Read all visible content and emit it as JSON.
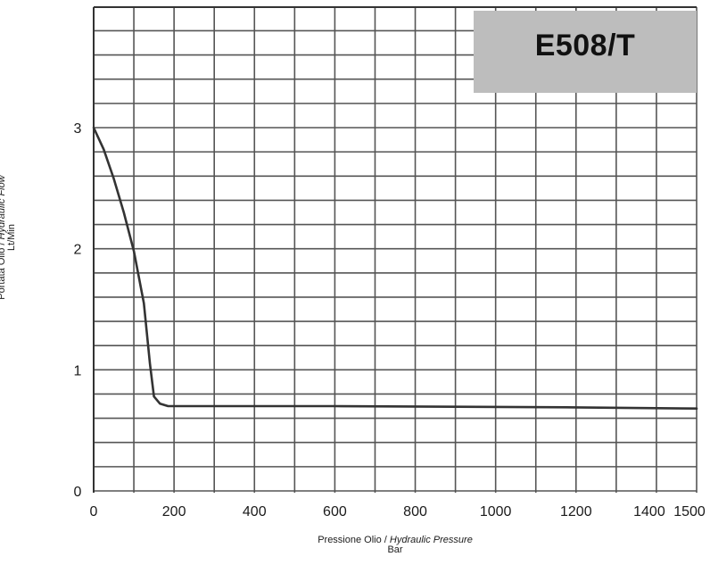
{
  "chart_data": {
    "type": "line",
    "title": "E508/T",
    "xlabel_main": "Pressione Olio / ",
    "xlabel_italic": "Hydraulic Pressure",
    "xlabel_unit": "Bar",
    "ylabel_main": "Portata Olio / ",
    "ylabel_italic": "Hydraulic Flow",
    "ylabel_unit": "Lt/Min",
    "xlim": [
      0,
      1500
    ],
    "ylim": [
      0,
      3
    ],
    "x_ticks": [
      "0",
      "200",
      "400",
      "600",
      "800",
      "1000",
      "1200",
      "1400",
      "1500"
    ],
    "x_tick_values": [
      0,
      200,
      400,
      600,
      800,
      1000,
      1200,
      1400,
      1500
    ],
    "y_ticks": [
      "0",
      "1",
      "2",
      "3"
    ],
    "y_tick_values": [
      0,
      1,
      2,
      3
    ],
    "grid": true,
    "series": [
      {
        "x": [
          0,
          25,
          50,
          75,
          100,
          125,
          140,
          150,
          165,
          185,
          300,
          600,
          900,
          1200,
          1500
        ],
        "y": [
          3.0,
          2.82,
          2.58,
          2.3,
          1.98,
          1.55,
          1.05,
          0.78,
          0.72,
          0.7,
          0.7,
          0.7,
          0.695,
          0.69,
          0.68
        ]
      }
    ],
    "colors": {
      "line": "#333333",
      "grid": "#555555",
      "box": "#bdbdbd"
    }
  }
}
